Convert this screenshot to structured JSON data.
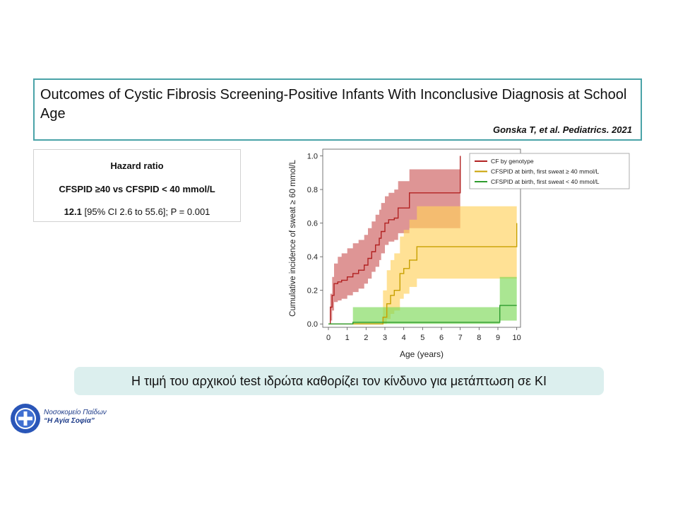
{
  "slide": {
    "title": "Outcomes of Cystic Fibrosis Screening-Positive Infants With Inconclusive Diagnosis at School Age",
    "citation": "Gonska T, et al. Pediatrics. 2021",
    "hazard_box": {
      "title": "Hazard ratio",
      "comparison": "CFSPID ≥40 vs CFSPID < 40 mmol/L",
      "value_bold": "12.1",
      "value_rest": " [95% CI 2.6 to 55.6]; P = 0.001"
    },
    "conclusion": "Η τιμή του αρχικού test ιδρώτα καθορίζει τον κίνδυνο για μετάπτωση σε ΚΙ",
    "hospital": {
      "line1": "Νοσοκομείο Παίδων",
      "line2": "“Η Αγία Σοφία”"
    }
  },
  "chart_data": {
    "type": "line",
    "xlabel": "Age (years)",
    "ylabel": "Cumulative incidence of sweat ≥ 60 mmol/L",
    "xlim": [
      -0.3,
      10.2
    ],
    "ylim": [
      -0.02,
      1.04
    ],
    "xticks": [
      0,
      1,
      2,
      3,
      4,
      5,
      6,
      7,
      8,
      9,
      10
    ],
    "yticks": [
      0.0,
      0.2,
      0.4,
      0.6,
      0.8,
      1.0
    ],
    "ytick_labels": [
      "0.0",
      "0.2",
      "0.4",
      "0.6",
      "0.8",
      "1.0"
    ],
    "legend_position": "top-right",
    "series": [
      {
        "name": "CF by genotype",
        "color": "#b22222",
        "band_color": "#cd5c5c",
        "x": [
          0.0,
          0.1,
          0.2,
          0.3,
          0.5,
          0.7,
          1.0,
          1.3,
          1.6,
          1.9,
          2.1,
          2.3,
          2.5,
          2.7,
          2.8,
          3.0,
          3.2,
          3.5,
          3.7,
          4.3,
          7.0,
          7.0
        ],
        "y": [
          0.0,
          0.1,
          0.17,
          0.24,
          0.25,
          0.26,
          0.28,
          0.3,
          0.32,
          0.35,
          0.39,
          0.43,
          0.47,
          0.51,
          0.55,
          0.6,
          0.62,
          0.63,
          0.69,
          0.78,
          0.78,
          1.0
        ],
        "lower": [
          0.0,
          0.02,
          0.08,
          0.13,
          0.14,
          0.15,
          0.17,
          0.19,
          0.21,
          0.24,
          0.27,
          0.31,
          0.34,
          0.38,
          0.42,
          0.47,
          0.49,
          0.5,
          0.54,
          0.57,
          0.57,
          0.57
        ],
        "upper": [
          0.0,
          0.18,
          0.28,
          0.36,
          0.4,
          0.42,
          0.45,
          0.48,
          0.5,
          0.53,
          0.57,
          0.61,
          0.65,
          0.68,
          0.72,
          0.76,
          0.78,
          0.8,
          0.85,
          0.92,
          0.92,
          0.92
        ]
      },
      {
        "name": "CFSPID at birth, first sweat ≥ 40 mmol/L",
        "color": "#c8a000",
        "band_color": "#ffd15c",
        "x": [
          0.0,
          2.8,
          2.9,
          3.1,
          3.3,
          3.5,
          3.8,
          4.0,
          4.3,
          4.7,
          9.0,
          9.3,
          9.6,
          10.0
        ],
        "y": [
          0.0,
          0.0,
          0.04,
          0.12,
          0.17,
          0.2,
          0.3,
          0.33,
          0.38,
          0.46,
          0.46,
          0.46,
          0.46,
          0.6
        ],
        "lower": [
          0.0,
          0.0,
          0.0,
          0.03,
          0.06,
          0.08,
          0.15,
          0.18,
          0.22,
          0.27,
          0.27,
          0.27,
          0.27,
          0.27
        ],
        "upper": [
          0.0,
          0.0,
          0.2,
          0.32,
          0.38,
          0.42,
          0.52,
          0.56,
          0.62,
          0.7,
          0.7,
          0.7,
          0.7,
          0.7
        ]
      },
      {
        "name": "CFSPID at birth, first sweat < 40 mmol/L",
        "color": "#2e9b2e",
        "band_color": "#7cd957",
        "x": [
          0.0,
          1.3,
          9.1,
          10.0
        ],
        "y": [
          0.0,
          0.01,
          0.11,
          0.11
        ],
        "lower": [
          0.0,
          0.0,
          0.02,
          0.02
        ],
        "upper": [
          0.0,
          0.1,
          0.28,
          0.28
        ]
      }
    ]
  }
}
